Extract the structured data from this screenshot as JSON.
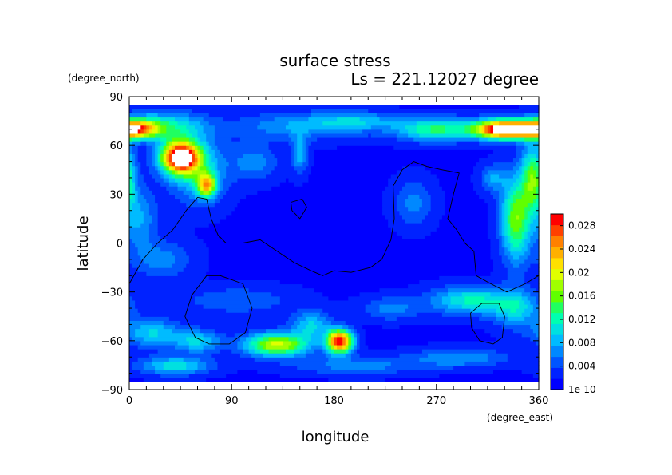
{
  "chart_data": {
    "type": "heatmap",
    "title": "surface stress",
    "subtitle": "Ls = 221.12027 degree",
    "xlabel": "longitude",
    "ylabel": "latitude",
    "x_units": "(degree_east)",
    "y_units": "(degree_north)",
    "xlim": [
      0,
      360
    ],
    "ylim": [
      -90,
      90
    ],
    "x_ticks": [
      0,
      90,
      180,
      270,
      360
    ],
    "y_ticks": [
      -90,
      -60,
      -30,
      0,
      30,
      60,
      90
    ],
    "x_tick_labels": [
      "0",
      "90",
      "180",
      "270",
      "360"
    ],
    "y_tick_labels": [
      "−90",
      "−60",
      "−30",
      "0",
      "30",
      "60",
      "90"
    ],
    "data_lat_range": [
      -85,
      85
    ],
    "colorbar": {
      "min": 0,
      "max": 0.03,
      "tick_values": [
        0,
        0.004,
        0.008,
        0.012,
        0.016,
        0.02,
        0.024,
        0.028
      ],
      "tick_labels": [
        "1e-10",
        "0.004",
        "0.008",
        "0.012",
        "0.016",
        "0.02",
        "0.024",
        "0.028"
      ],
      "colors": [
        "#0000ff",
        "#0022ff",
        "#0055ff",
        "#0088ff",
        "#00bbff",
        "#00e0e0",
        "#00ffb0",
        "#20ff60",
        "#60ff00",
        "#a0ff00",
        "#e0ff00",
        "#ffe000",
        "#ffb000",
        "#ff8000",
        "#ff4000",
        "#ff0000"
      ],
      "over_color": "#ffffff"
    },
    "background_value": 0.0015,
    "features": [
      {
        "lon": 45,
        "lat": 53,
        "amp": 0.031,
        "sx": 12,
        "sy": 7
      },
      {
        "lon": 68,
        "lat": 36,
        "amp": 0.018,
        "sx": 6,
        "sy": 5
      },
      {
        "lon": 60,
        "lat": 45,
        "amp": 0.008,
        "sx": 18,
        "sy": 14
      },
      {
        "lon": 5,
        "lat": 70,
        "amp": 0.02,
        "sx": 14,
        "sy": 4
      },
      {
        "lon": 30,
        "lat": 72,
        "amp": 0.01,
        "sx": 25,
        "sy": 6
      },
      {
        "lon": 150,
        "lat": 72,
        "amp": 0.006,
        "sx": 40,
        "sy": 6
      },
      {
        "lon": 270,
        "lat": 70,
        "amp": 0.012,
        "sx": 25,
        "sy": 5
      },
      {
        "lon": 330,
        "lat": 70,
        "amp": 0.032,
        "sx": 18,
        "sy": 4
      },
      {
        "lon": 200,
        "lat": 75,
        "amp": 0.006,
        "sx": 25,
        "sy": 4
      },
      {
        "lon": 355,
        "lat": 40,
        "amp": 0.014,
        "sx": 7,
        "sy": 14
      },
      {
        "lon": 340,
        "lat": 15,
        "amp": 0.015,
        "sx": 9,
        "sy": 18
      },
      {
        "lon": 320,
        "lat": 40,
        "amp": 0.006,
        "sx": 8,
        "sy": 6
      },
      {
        "lon": 10,
        "lat": 15,
        "amp": 0.006,
        "sx": 10,
        "sy": 14
      },
      {
        "lon": 30,
        "lat": -10,
        "amp": 0.005,
        "sx": 18,
        "sy": 8
      },
      {
        "lon": 95,
        "lat": -35,
        "amp": 0.004,
        "sx": 35,
        "sy": 6
      },
      {
        "lon": 185,
        "lat": -60,
        "amp": 0.028,
        "sx": 8,
        "sy": 5
      },
      {
        "lon": 130,
        "lat": -62,
        "amp": 0.018,
        "sx": 20,
        "sy": 5
      },
      {
        "lon": 160,
        "lat": -50,
        "amp": 0.008,
        "sx": 12,
        "sy": 6
      },
      {
        "lon": 20,
        "lat": -55,
        "amp": 0.008,
        "sx": 18,
        "sy": 6
      },
      {
        "lon": 60,
        "lat": -60,
        "amp": 0.008,
        "sx": 15,
        "sy": 5
      },
      {
        "lon": 40,
        "lat": -75,
        "amp": 0.009,
        "sx": 22,
        "sy": 4
      },
      {
        "lon": 300,
        "lat": -35,
        "amp": 0.01,
        "sx": 25,
        "sy": 6
      },
      {
        "lon": 340,
        "lat": -40,
        "amp": 0.008,
        "sx": 15,
        "sy": 8
      },
      {
        "lon": 290,
        "lat": -70,
        "amp": 0.006,
        "sx": 30,
        "sy": 4
      },
      {
        "lon": 200,
        "lat": -75,
        "amp": 0.005,
        "sx": 40,
        "sy": 4
      },
      {
        "lon": 230,
        "lat": -40,
        "amp": 0.005,
        "sx": 18,
        "sy": 5
      },
      {
        "lon": 150,
        "lat": 55,
        "amp": 0.007,
        "sx": 5,
        "sy": 8
      },
      {
        "lon": 250,
        "lat": 25,
        "amp": 0.005,
        "sx": 12,
        "sy": 10
      },
      {
        "lon": 110,
        "lat": 50,
        "amp": 0.005,
        "sx": 15,
        "sy": 8
      }
    ],
    "contours": [
      [
        [
          0,
          -25
        ],
        [
          12,
          -10
        ],
        [
          25,
          0
        ],
        [
          38,
          8
        ],
        [
          50,
          20
        ],
        [
          60,
          28
        ],
        [
          68,
          27
        ],
        [
          72,
          15
        ],
        [
          78,
          5
        ],
        [
          85,
          0
        ],
        [
          100,
          0
        ],
        [
          115,
          2
        ],
        [
          130,
          -5
        ],
        [
          145,
          -12
        ],
        [
          160,
          -17
        ],
        [
          170,
          -20
        ],
        [
          180,
          -17
        ],
        [
          195,
          -18
        ],
        [
          212,
          -15
        ],
        [
          222,
          -10
        ],
        [
          230,
          2
        ],
        [
          233,
          15
        ],
        [
          232,
          35
        ],
        [
          240,
          45
        ],
        [
          250,
          50
        ],
        [
          262,
          47
        ],
        [
          275,
          45
        ],
        [
          290,
          43
        ],
        [
          285,
          30
        ],
        [
          280,
          15
        ],
        [
          288,
          8
        ],
        [
          295,
          0
        ],
        [
          303,
          -5
        ],
        [
          305,
          -20
        ],
        [
          318,
          -25
        ],
        [
          332,
          -30
        ],
        [
          348,
          -25
        ],
        [
          360,
          -20
        ]
      ],
      [
        [
          142,
          25
        ],
        [
          152,
          27
        ],
        [
          156,
          22
        ],
        [
          150,
          15
        ],
        [
          143,
          20
        ],
        [
          142,
          25
        ]
      ],
      [
        [
          55,
          -32
        ],
        [
          68,
          -20
        ],
        [
          80,
          -20
        ],
        [
          100,
          -25
        ],
        [
          108,
          -40
        ],
        [
          102,
          -55
        ],
        [
          88,
          -62
        ],
        [
          70,
          -62
        ],
        [
          58,
          -58
        ],
        [
          49,
          -45
        ],
        [
          55,
          -32
        ]
      ],
      [
        [
          300,
          -43
        ],
        [
          310,
          -37
        ],
        [
          325,
          -37
        ],
        [
          330,
          -45
        ],
        [
          328,
          -58
        ],
        [
          320,
          -62
        ],
        [
          308,
          -60
        ],
        [
          301,
          -52
        ],
        [
          300,
          -43
        ]
      ]
    ]
  }
}
